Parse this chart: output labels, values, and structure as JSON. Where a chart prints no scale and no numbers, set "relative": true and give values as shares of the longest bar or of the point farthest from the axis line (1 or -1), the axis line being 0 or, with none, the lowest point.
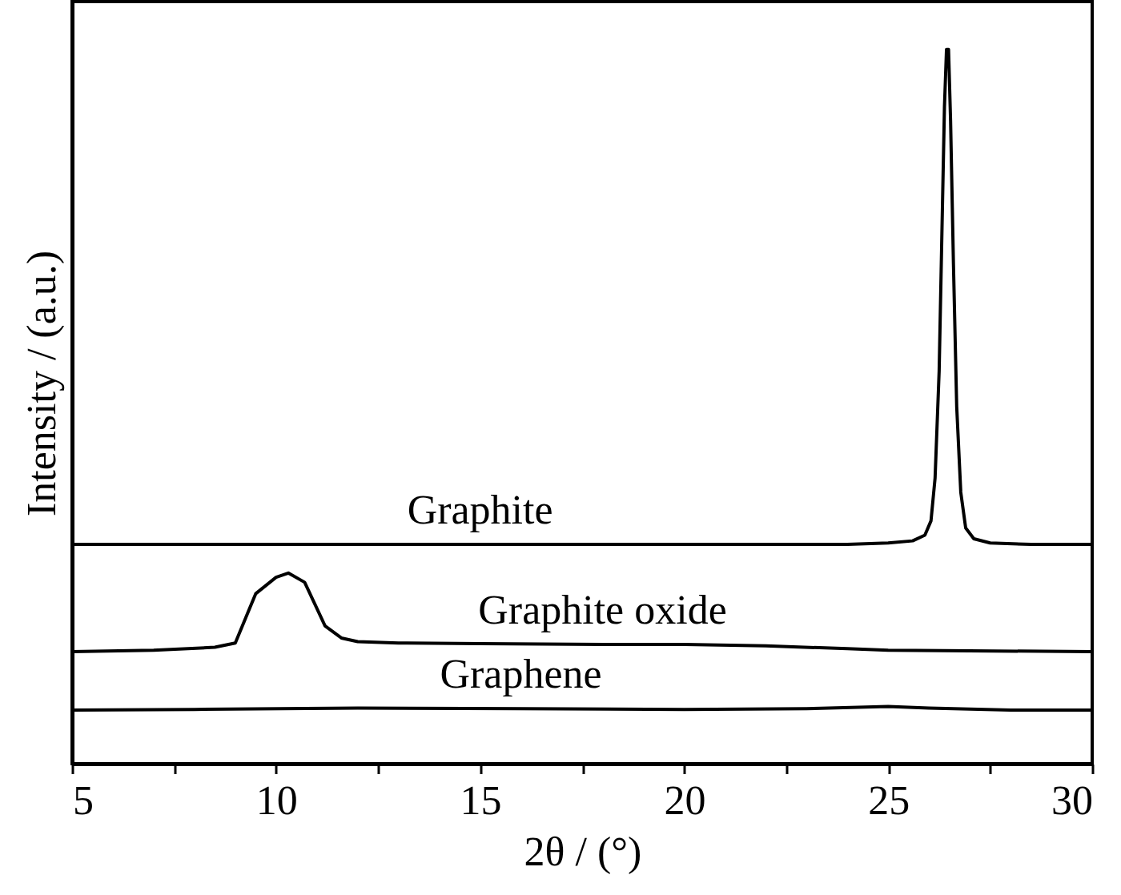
{
  "chart_data": {
    "type": "line",
    "relative": true,
    "xlabel": "2θ / (°)",
    "ylabel": "Intensity / (a.u.)",
    "xlim": [
      5,
      30
    ],
    "xticks": [
      5,
      {
        "value": 7.5,
        "label": null
      },
      10,
      {
        "value": 12.5,
        "label": null
      },
      15,
      {
        "value": 17.5,
        "label": null
      },
      20,
      {
        "value": 22.5,
        "label": null
      },
      25,
      {
        "value": 27.5,
        "label": null
      },
      30
    ],
    "grid": false,
    "marker": "none",
    "line_style": "solid",
    "series": [
      {
        "name": "Graphite",
        "color": "#000000",
        "x": [
          5,
          10,
          15,
          20,
          24,
          25,
          25.6,
          25.9,
          26.05,
          26.15,
          26.25,
          26.32,
          26.38,
          26.43,
          26.48,
          26.53,
          26.6,
          26.68,
          26.78,
          26.9,
          27.1,
          27.5,
          28.5,
          30
        ],
        "values": [
          0.307,
          0.307,
          0.307,
          0.307,
          0.307,
          0.309,
          0.312,
          0.32,
          0.34,
          0.4,
          0.55,
          0.75,
          0.92,
          1.0,
          1.0,
          0.9,
          0.7,
          0.5,
          0.38,
          0.33,
          0.315,
          0.309,
          0.307,
          0.307
        ]
      },
      {
        "name": "Graphite oxide",
        "color": "#000000",
        "x": [
          5,
          7,
          8.5,
          9,
          9.5,
          10,
          10.3,
          10.7,
          11.2,
          11.6,
          12,
          13,
          15,
          18,
          20,
          22,
          24,
          25,
          27,
          30
        ],
        "values": [
          0.157,
          0.159,
          0.163,
          0.169,
          0.238,
          0.261,
          0.267,
          0.254,
          0.193,
          0.176,
          0.171,
          0.169,
          0.168,
          0.167,
          0.167,
          0.165,
          0.161,
          0.159,
          0.158,
          0.157
        ]
      },
      {
        "name": "Graphene",
        "color": "#000000",
        "x": [
          5,
          8,
          12,
          16,
          20,
          23,
          25,
          26,
          28,
          30
        ],
        "values": [
          0.075,
          0.076,
          0.078,
          0.077,
          0.076,
          0.077,
          0.08,
          0.078,
          0.075,
          0.075
        ]
      }
    ]
  }
}
